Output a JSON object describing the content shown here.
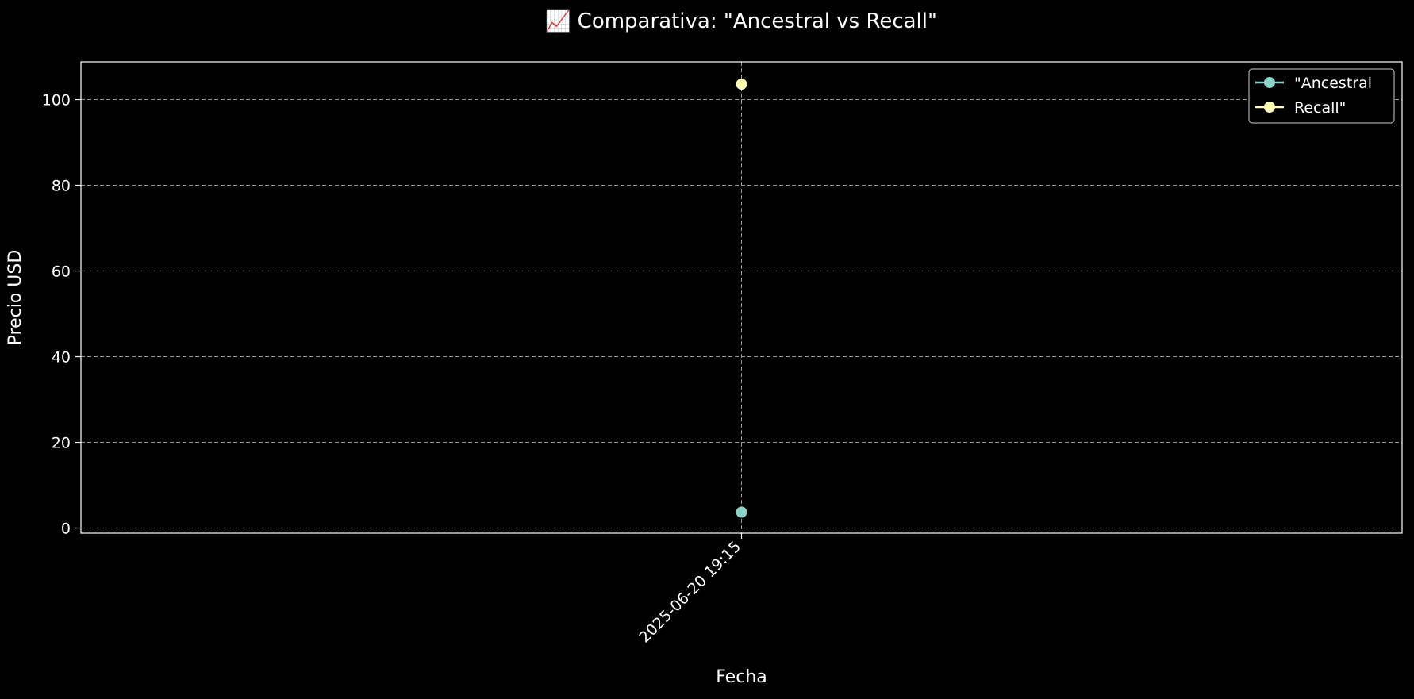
{
  "chart_data": {
    "type": "line",
    "title": "📈 Comparativa: \"Ancestral vs Recall\"",
    "xlabel": "Fecha",
    "ylabel": "Precio USD",
    "x_categories": [
      "2025-06-20 19:15"
    ],
    "ylim": [
      -1.2,
      108.8
    ],
    "yticks": [
      0,
      20,
      40,
      60,
      80,
      100
    ],
    "grid": true,
    "legend_position": "top-right",
    "series": [
      {
        "name": "\"Ancestral",
        "color": "#8dd3c7",
        "values": [
          3.7
        ]
      },
      {
        "name": "Recall\"",
        "color": "#feffb3",
        "values": [
          103.6
        ]
      }
    ]
  }
}
